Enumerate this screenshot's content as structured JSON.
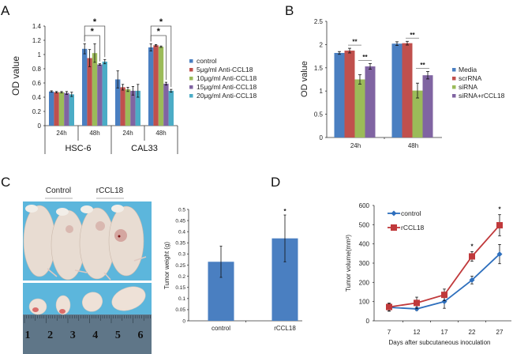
{
  "panel_labels": [
    "A",
    "B",
    "C",
    "D"
  ],
  "colors": {
    "blue": "#4a7fc1",
    "red": "#c0504d",
    "green": "#9bbb59",
    "purple": "#8064a2",
    "cyan": "#4bacc6",
    "line_blue": "#2e6fbd",
    "line_red": "#c0393b"
  },
  "photos": {
    "group_labels": [
      "Control",
      "rCCL18"
    ],
    "ruler_numbers": [
      "1",
      "2",
      "3",
      "4",
      "5",
      "6"
    ]
  },
  "chart_data": [
    {
      "panel": "A",
      "type": "bar",
      "title": "",
      "xlabel": "",
      "ylabel": "OD value",
      "ylim": [
        0,
        1.4
      ],
      "yticks": [
        "0",
        "0.2",
        "0.4",
        "0.6",
        "0.8",
        "1",
        "1.2",
        "1.4"
      ],
      "categories": [
        "24h",
        "48h",
        "24h",
        "48h"
      ],
      "category_groups": [
        "HSC-6",
        "CAL33"
      ],
      "legend_position": "right",
      "series": [
        {
          "name": "control",
          "color_key": "blue",
          "values": [
            0.48,
            1.08,
            0.65,
            1.1
          ],
          "errors": [
            0.01,
            0.07,
            0.12,
            0.05
          ]
        },
        {
          "name": "5μg/ml Anti-CCL18",
          "color_key": "red",
          "values": [
            0.47,
            0.95,
            0.54,
            1.13
          ],
          "errors": [
            0.01,
            0.12,
            0.04,
            0.01
          ]
        },
        {
          "name": "10μg/ml Anti-CCL18",
          "color_key": "green",
          "values": [
            0.47,
            1.02,
            0.51,
            1.11
          ],
          "errors": [
            0.01,
            0.13,
            0.03,
            0.01
          ]
        },
        {
          "name": "15μg/ml Anti-CCL18",
          "color_key": "purple",
          "values": [
            0.46,
            0.86,
            0.49,
            0.59
          ],
          "errors": [
            0.02,
            0.01,
            0.06,
            0.02
          ]
        },
        {
          "name": "20μg/ml Anti-CCL18",
          "color_key": "cyan",
          "values": [
            0.44,
            0.9,
            0.49,
            0.49
          ],
          "errors": [
            0.03,
            0.03,
            0.09,
            0.02
          ]
        }
      ],
      "annotations": [
        {
          "text": "*",
          "category_index": 1,
          "from_series": 0,
          "to_series": 3,
          "level": "lower"
        },
        {
          "text": "*",
          "category_index": 1,
          "from_series": 0,
          "to_series": 4,
          "level": "upper"
        },
        {
          "text": "*",
          "category_index": 3,
          "from_series": 0,
          "to_series": 3,
          "level": "lower"
        },
        {
          "text": "*",
          "category_index": 3,
          "from_series": 0,
          "to_series": 4,
          "level": "upper"
        }
      ]
    },
    {
      "panel": "B",
      "type": "bar",
      "title": "",
      "xlabel": "",
      "ylabel": "OD value",
      "ylim": [
        0,
        2.5
      ],
      "yticks": [
        "0",
        "0.5",
        "1",
        "1.5",
        "2",
        "2.5"
      ],
      "categories": [
        "24h",
        "48h"
      ],
      "legend_position": "right",
      "series": [
        {
          "name": "Media",
          "color_key": "blue",
          "values": [
            1.82,
            2.02
          ],
          "errors": [
            0.03,
            0.04
          ]
        },
        {
          "name": "scrRNA",
          "color_key": "red",
          "values": [
            1.87,
            2.03
          ],
          "errors": [
            0.05,
            0.04
          ]
        },
        {
          "name": "siRNA",
          "color_key": "green",
          "values": [
            1.25,
            1.01
          ],
          "errors": [
            0.1,
            0.16
          ]
        },
        {
          "name": "siRNA+rCCL18",
          "color_key": "purple",
          "values": [
            1.53,
            1.34
          ],
          "errors": [
            0.06,
            0.08
          ]
        }
      ],
      "annotations": [
        {
          "text": "**",
          "category_index": 0,
          "between_series": [
            1,
            2
          ]
        },
        {
          "text": "**",
          "category_index": 0,
          "between_series": [
            2,
            3
          ]
        },
        {
          "text": "**",
          "category_index": 1,
          "between_series": [
            1,
            2
          ]
        },
        {
          "text": "**",
          "category_index": 1,
          "between_series": [
            2,
            3
          ]
        }
      ]
    },
    {
      "panel": "C",
      "type": "bar",
      "title": "",
      "xlabel": "",
      "ylabel": "Tumor weight (g)",
      "ylim": [
        0,
        0.5
      ],
      "yticks": [
        "0",
        "0.05",
        "0.1",
        "0.15",
        "0.2",
        "0.25",
        "0.3",
        "0.35",
        "0.4",
        "0.45",
        "0.5"
      ],
      "categories": [
        "control",
        "rCCL18"
      ],
      "values": [
        0.265,
        0.37
      ],
      "errors": [
        0.07,
        0.105
      ],
      "annotations": [
        {
          "text": "*",
          "category_index": 1
        }
      ]
    },
    {
      "panel": "D",
      "type": "line",
      "title": "",
      "xlabel": "Days after subcutaneous inoculation",
      "ylabel": "Tumor volume(mm³)",
      "ylim": [
        0,
        600
      ],
      "yticks": [
        "0",
        "100",
        "200",
        "300",
        "400",
        "500",
        "600"
      ],
      "x": [
        7,
        12,
        17,
        22,
        27
      ],
      "xticks": [
        "7",
        "12",
        "17",
        "22",
        "27"
      ],
      "legend_position": "top-left",
      "series": [
        {
          "name": "control",
          "color_key": "line_blue",
          "marker": "diamond",
          "values": [
            70,
            62,
            100,
            212,
            347
          ],
          "errors": [
            20,
            8,
            35,
            20,
            50
          ]
        },
        {
          "name": "rCCL18",
          "color_key": "line_red",
          "marker": "square",
          "values": [
            72,
            93,
            135,
            335,
            497
          ],
          "errors": [
            20,
            30,
            30,
            25,
            55
          ]
        }
      ],
      "annotations": [
        {
          "text": "*",
          "x_index": 3
        },
        {
          "text": "*",
          "x_index": 4
        }
      ]
    }
  ]
}
